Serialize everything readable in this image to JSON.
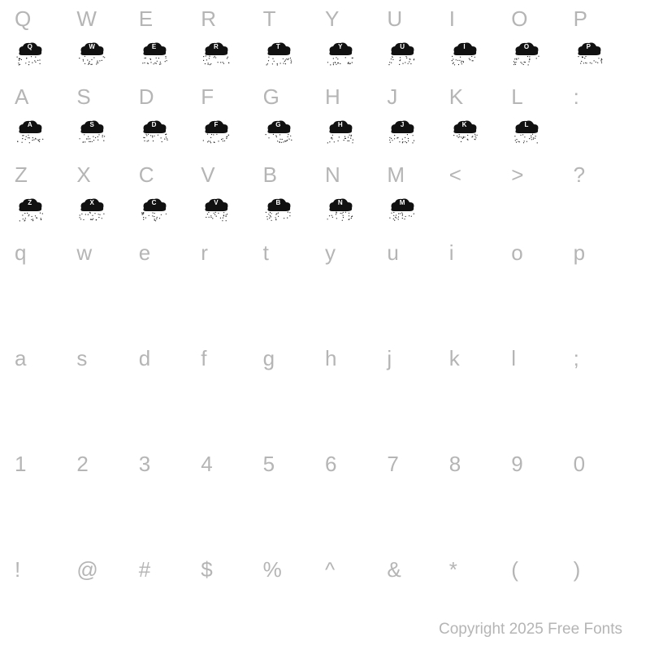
{
  "colors": {
    "label": "#b5b5b5",
    "glyph": "#111111",
    "glyph_letter": "#ffffff",
    "background": "#ffffff",
    "copyright": "#b5b5b5"
  },
  "typography": {
    "label_fontsize": 26,
    "label_weight": 400,
    "copyright_fontsize": 19,
    "cloud_letter_fontsize": 8
  },
  "layout": {
    "columns": 10,
    "row_gap_label_to_glyph": 10,
    "section_gap": 46
  },
  "rows": [
    {
      "labels": [
        "Q",
        "W",
        "E",
        "R",
        "T",
        "Y",
        "U",
        "I",
        "O",
        "P"
      ],
      "glyphs": [
        "Q",
        "W",
        "E",
        "R",
        "T",
        "Y",
        "U",
        "I",
        "O",
        "P"
      ]
    },
    {
      "labels": [
        "A",
        "S",
        "D",
        "F",
        "G",
        "H",
        "J",
        "K",
        "L",
        ":"
      ],
      "glyphs": [
        "A",
        "S",
        "D",
        "F",
        "G",
        "H",
        "J",
        "K",
        "L",
        null
      ]
    },
    {
      "labels": [
        "Z",
        "X",
        "C",
        "V",
        "B",
        "N",
        "M",
        "<",
        ">",
        "?"
      ],
      "glyphs": [
        "Z",
        "X",
        "C",
        "V",
        "B",
        "N",
        "M",
        null,
        null,
        null
      ]
    },
    {
      "labels": [
        "q",
        "w",
        "e",
        "r",
        "t",
        "y",
        "u",
        "i",
        "o",
        "p"
      ],
      "glyphs": [
        null,
        null,
        null,
        null,
        null,
        null,
        null,
        null,
        null,
        null
      ]
    },
    {
      "labels": [
        "a",
        "s",
        "d",
        "f",
        "g",
        "h",
        "j",
        "k",
        "l",
        ";"
      ],
      "glyphs": [
        null,
        null,
        null,
        null,
        null,
        null,
        null,
        null,
        null,
        null
      ]
    },
    {
      "labels": [
        "1",
        "2",
        "3",
        "4",
        "5",
        "6",
        "7",
        "8",
        "9",
        "0"
      ],
      "glyphs": [
        null,
        null,
        null,
        null,
        null,
        null,
        null,
        null,
        null,
        null
      ]
    },
    {
      "labels": [
        "!",
        "@",
        "#",
        "$",
        "%",
        "^",
        "&",
        "*",
        "(",
        ")"
      ],
      "glyphs": [
        null,
        null,
        null,
        null,
        null,
        null,
        null,
        null,
        null,
        null
      ]
    }
  ],
  "copyright": "Copyright 2025 Free Fonts"
}
